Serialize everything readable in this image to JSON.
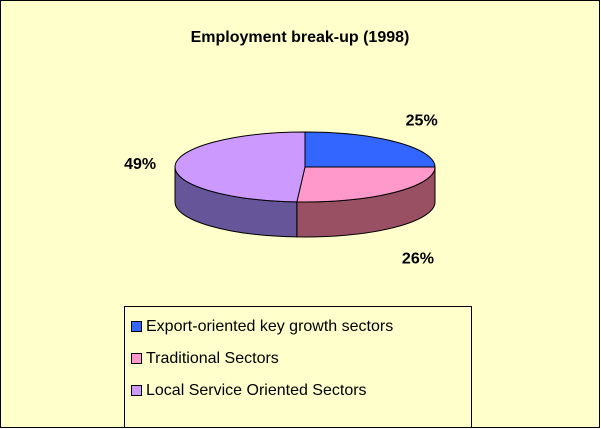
{
  "chart_data": {
    "type": "pie",
    "title": "Employment break-up (1998)",
    "categories": [
      "Export-oriented key growth sectors",
      "Traditional Sectors",
      "Local Service Oriented Sectors"
    ],
    "values": [
      25,
      26,
      49
    ],
    "value_labels": [
      "25%",
      "26%",
      "49%"
    ],
    "colors": [
      "#3366ff",
      "#ff99cc",
      "#cc99ff"
    ],
    "side_colors": [
      "#1f3d99",
      "#995063",
      "#665599"
    ]
  }
}
